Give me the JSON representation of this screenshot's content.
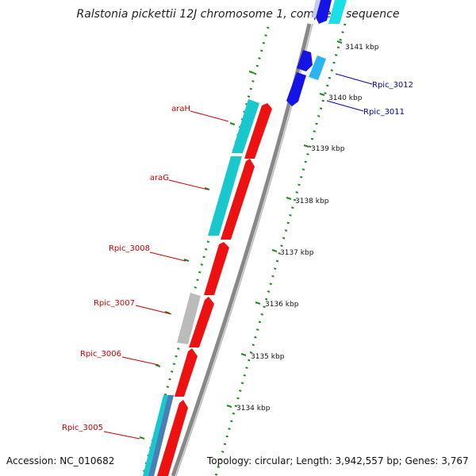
{
  "title": "Ralstonia pickettii 12J chromosome 1, complete sequence",
  "accession_label": "Accession: NC_010682",
  "summary_label": "Topology: circular; Length: 3,942,557 bp; Genes: 3,767",
  "colors": {
    "backbone": "#888888",
    "tick": "#1f8a1f",
    "forward_gene": "#ee1111",
    "reverse_gene": "#19c8cc",
    "hypothetical": "#bbbbbb",
    "blue_gene": "#1414e6",
    "light_blue_gene": "#2ab4f0",
    "label_red": "#cc0000",
    "label_blue": "#0000bb"
  },
  "scale_ticks": [
    "3141 kbp",
    "3140 kbp",
    "3139 kbp",
    "3138 kbp",
    "3137 kbp",
    "3136 kbp",
    "3135 kbp",
    "3134 kbp"
  ],
  "gene_labels": [
    {
      "text": "araH",
      "color": "red"
    },
    {
      "text": "araG",
      "color": "red"
    },
    {
      "text": "Rpic_3008",
      "color": "red"
    },
    {
      "text": "Rpic_3007",
      "color": "red"
    },
    {
      "text": "Rpic_3006",
      "color": "red"
    },
    {
      "text": "Rpic_3005",
      "color": "red"
    },
    {
      "text": "Rpic_3012",
      "color": "blue"
    },
    {
      "text": "Rpic_3011",
      "color": "blue"
    }
  ]
}
